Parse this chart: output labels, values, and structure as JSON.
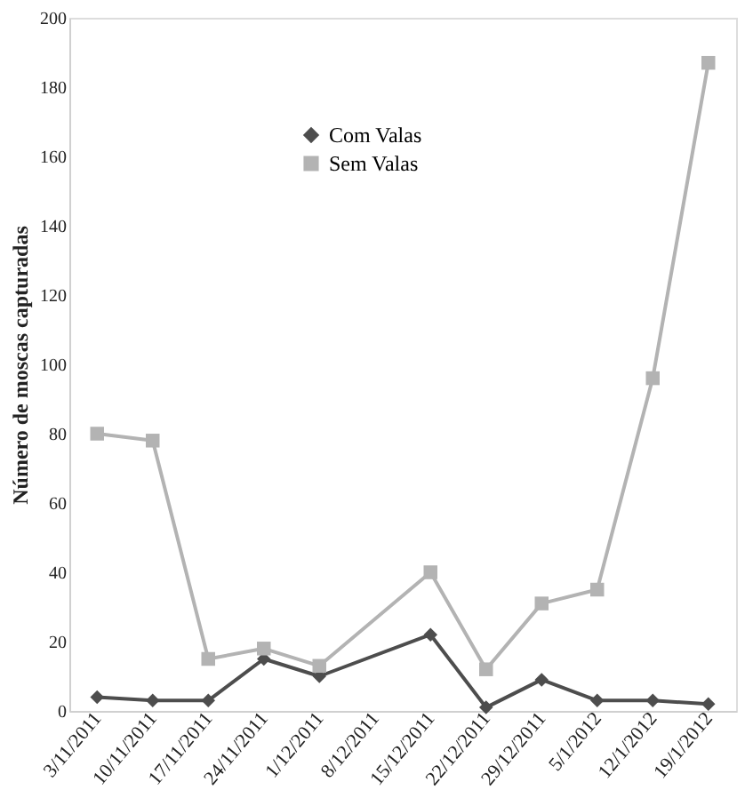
{
  "chart_data": {
    "type": "line",
    "ylabel": "Número de moscas capturadas",
    "categories": [
      "3/11/2011",
      "10/11/2011",
      "17/11/2011",
      "24/11/2011",
      "1/12/2011",
      "8/12/2011",
      "15/12/2011",
      "22/12/2011",
      "29/12/2011",
      "5/1/2012",
      "12/1/2012",
      "19/1/2012"
    ],
    "series": [
      {
        "name": "Com Valas",
        "color": "#4d4d4d",
        "marker": "diamond",
        "values": [
          4,
          3,
          3,
          15,
          10,
          null,
          22,
          1,
          9,
          3,
          3,
          2
        ]
      },
      {
        "name": "Sem Valas",
        "color": "#b3b3b3",
        "marker": "square",
        "values": [
          80,
          78,
          15,
          18,
          13,
          null,
          40,
          12,
          31,
          35,
          96,
          187
        ]
      }
    ],
    "ylim": [
      0,
      200
    ],
    "yticks": [
      0,
      20,
      40,
      60,
      80,
      100,
      120,
      140,
      160,
      180,
      200
    ],
    "grid": false,
    "legend": "top"
  }
}
